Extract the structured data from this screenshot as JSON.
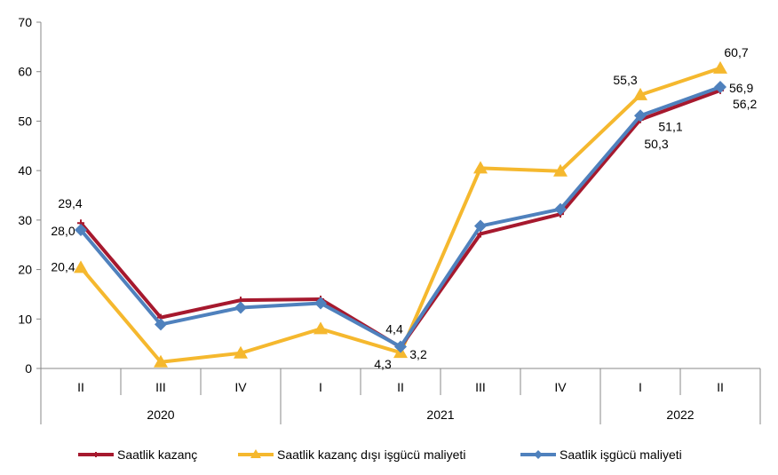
{
  "chart_data": {
    "type": "line",
    "categories": [
      "II",
      "III",
      "IV",
      "I",
      "II",
      "III",
      "IV",
      "I",
      "II"
    ],
    "groups": [
      {
        "label": "2020",
        "span": 3
      },
      {
        "label": "2021",
        "span": 4
      },
      {
        "label": "2022",
        "span": 2
      }
    ],
    "ylim": [
      0,
      70
    ],
    "yticks": [
      0,
      10,
      20,
      30,
      40,
      50,
      60,
      70
    ],
    "grid": false,
    "legend_position": "bottom",
    "series": [
      {
        "name": "Saatlik kazanç",
        "color": "#A6192E",
        "marker": "cross",
        "values": [
          29.4,
          10.3,
          13.8,
          14.0,
          4.3,
          27.2,
          31.2,
          50.3,
          56.2
        ],
        "labels": {
          "0": "29,4",
          "4": "4,3",
          "7": "50,3",
          "8": "56,2"
        }
      },
      {
        "name": "Saatlik kazanç dışı işgücü maliyeti",
        "color": "#F5B82E",
        "marker": "triangle",
        "values": [
          20.4,
          1.3,
          3.1,
          8.0,
          3.2,
          40.5,
          39.9,
          55.3,
          60.7
        ],
        "labels": {
          "0": "20,4",
          "4": "3,2",
          "7": "55,3",
          "8": "60,7"
        }
      },
      {
        "name": "Saatlik işgücü maliyeti",
        "color": "#4F81BD",
        "marker": "diamond",
        "values": [
          28.0,
          8.9,
          12.3,
          13.2,
          4.4,
          28.8,
          32.2,
          51.1,
          56.9
        ],
        "labels": {
          "0": "28,0",
          "4": "4,4",
          "7": "51,1",
          "8": "56,9"
        }
      }
    ]
  }
}
